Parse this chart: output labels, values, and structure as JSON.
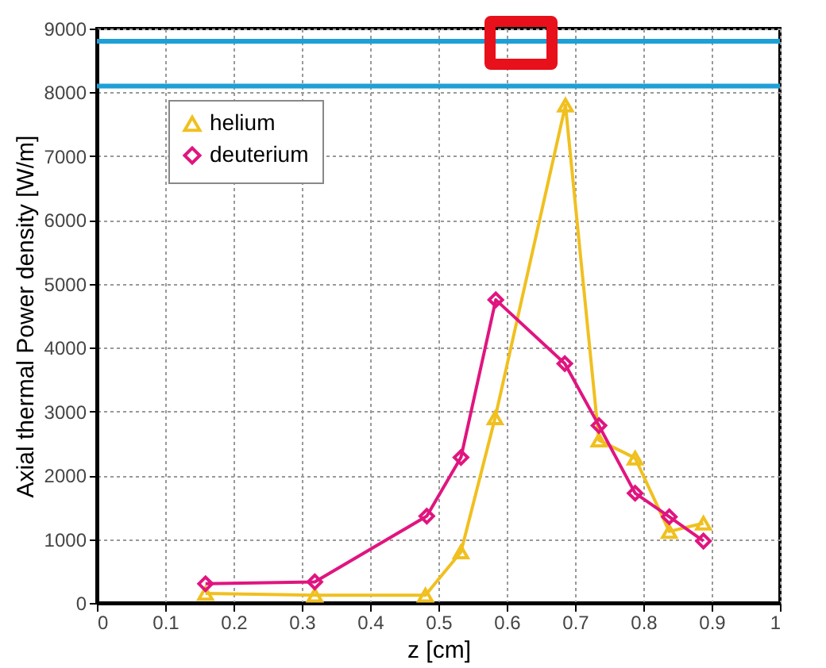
{
  "chart_data": {
    "type": "line",
    "xlabel": "z [cm]",
    "ylabel": "Axial thermal Power density [W/m]",
    "xlim": [
      0,
      1
    ],
    "xticks": [
      0,
      0.1,
      0.2,
      0.3,
      0.4,
      0.5,
      0.6,
      0.7,
      0.8,
      0.9,
      1
    ],
    "ylim": [
      0,
      9000
    ],
    "yticks": [
      0,
      1000,
      2000,
      3000,
      4000,
      5000,
      6000,
      7000,
      8000,
      9000
    ],
    "grid": true,
    "legend": "top left",
    "line_style": "solid",
    "series": [
      {
        "name": "helium",
        "color": "#f0c020",
        "marker": "triangle",
        "x": [
          0.159,
          0.319,
          0.481,
          0.533,
          0.583,
          0.686,
          0.735,
          0.788,
          0.838,
          0.888
        ],
        "values": [
          150,
          120,
          120,
          800,
          2900,
          7800,
          2550,
          2270,
          1120,
          1250
        ]
      },
      {
        "name": "deuterium",
        "color": "#e0157f",
        "marker": "diamond",
        "x": [
          0.159,
          0.319,
          0.483,
          0.533,
          0.584,
          0.685,
          0.735,
          0.788,
          0.838,
          0.888
        ],
        "values": [
          300,
          330,
          1360,
          2280,
          4750,
          3750,
          2780,
          1720,
          1350,
          970
        ]
      }
    ],
    "ref_lines": [
      {
        "axis": "y",
        "value": 8800,
        "color": "#1e9fd6"
      },
      {
        "axis": "y",
        "value": 8100,
        "color": "#1e9fd6"
      }
    ]
  }
}
